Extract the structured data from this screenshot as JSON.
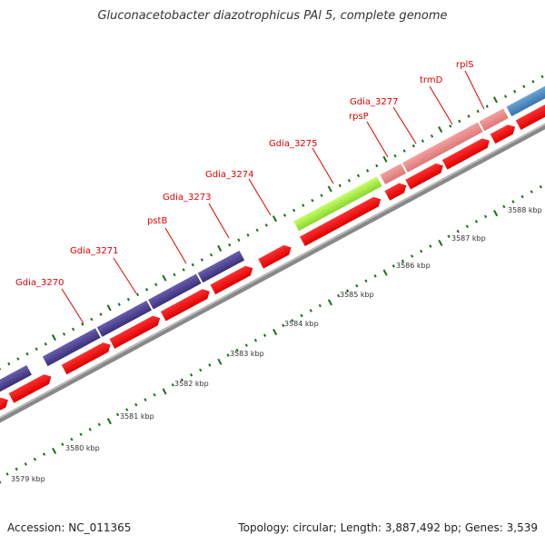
{
  "title": "Gluconacetobacter diazotrophicus PAl 5, complete genome",
  "footer": {
    "accession": "Accession: NC_011365",
    "stats": "Topology: circular; Length: 3,887,492 bp; Genes: 3,539"
  },
  "colors": {
    "cds_red": "#ff0000",
    "gene_purple": "#4a3f8c",
    "gene_green": "#a8ee44",
    "gene_pink": "#ee8888",
    "gene_blue": "#4a88c0",
    "label_red": "#dd0000",
    "tick_green": "#1a6e1a",
    "backbone_gray": "#888888"
  },
  "gene_labels": [
    "Gdia_3270",
    "Gdia_3271",
    "pstB",
    "Gdia_3273",
    "Gdia_3274",
    "Gdia_3275",
    "rpsP",
    "Gdia_3277",
    "trmD",
    "rplS"
  ],
  "kbp_labels": [
    "3579 kbp",
    "3580 kbp",
    "3581 kbp",
    "3582 kbp",
    "3583 kbp",
    "3584 kbp",
    "3585 kbp",
    "3586 kbp",
    "3587 kbp",
    "3588 kbp"
  ]
}
